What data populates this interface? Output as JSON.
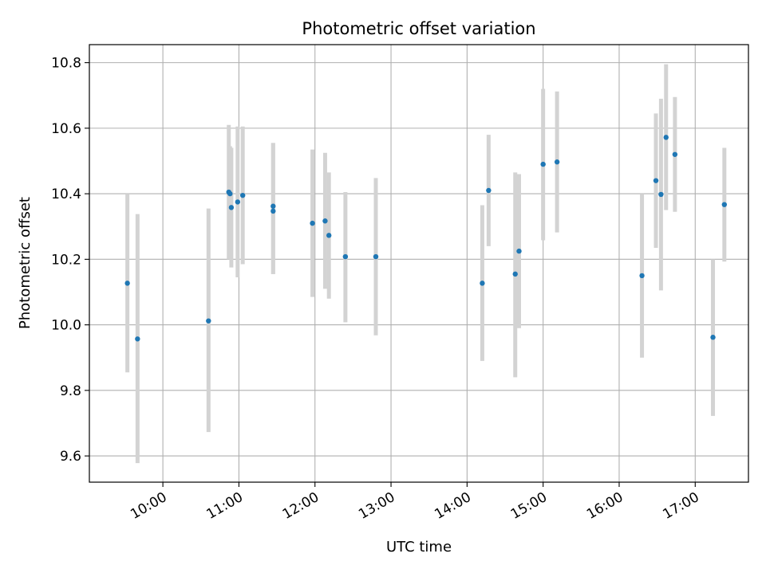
{
  "chart_data": {
    "type": "scatter",
    "title": "Photometric offset variation",
    "xlabel": "UTC time",
    "ylabel": "Photometric offset",
    "xlim": [
      "09:02",
      "17:42"
    ],
    "ylim": [
      9.52,
      10.855
    ],
    "x_ticks": [
      "10:00",
      "11:00",
      "12:00",
      "13:00",
      "14:00",
      "15:00",
      "16:00",
      "17:00"
    ],
    "y_ticks": [
      9.6,
      9.8,
      10.0,
      10.2,
      10.4,
      10.6,
      10.8
    ],
    "y_tick_labels": [
      "9.6",
      "9.8",
      "10.0",
      "10.2",
      "10.4",
      "10.6",
      "10.8"
    ],
    "grid": true,
    "point_color": "#1f77b4",
    "errorbar_color": "#d3d3d3",
    "points": [
      {
        "x": "09:32",
        "y": 10.127,
        "ylo": 9.855,
        "yhi": 10.4
      },
      {
        "x": "09:40",
        "y": 9.957,
        "ylo": 9.578,
        "yhi": 10.338
      },
      {
        "x": "10:36",
        "y": 10.012,
        "ylo": 9.673,
        "yhi": 10.355
      },
      {
        "x": "10:52",
        "y": 10.405,
        "ylo": 10.2,
        "yhi": 10.61
      },
      {
        "x": "10:53",
        "y": 10.4,
        "ylo": 10.255,
        "yhi": 10.545
      },
      {
        "x": "10:54",
        "y": 10.358,
        "ylo": 10.175,
        "yhi": 10.54
      },
      {
        "x": "10:59",
        "y": 10.375,
        "ylo": 10.145,
        "yhi": 10.605
      },
      {
        "x": "11:03",
        "y": 10.395,
        "ylo": 10.185,
        "yhi": 10.605
      },
      {
        "x": "11:27",
        "y": 10.362,
        "ylo": 10.155,
        "yhi": 10.555
      },
      {
        "x": "11:27",
        "y": 10.347,
        "ylo": 10.155,
        "yhi": 10.555
      },
      {
        "x": "11:58",
        "y": 10.31,
        "ylo": 10.085,
        "yhi": 10.535
      },
      {
        "x": "12:08",
        "y": 10.317,
        "ylo": 10.11,
        "yhi": 10.525
      },
      {
        "x": "12:11",
        "y": 10.273,
        "ylo": 10.08,
        "yhi": 10.465
      },
      {
        "x": "12:24",
        "y": 10.208,
        "ylo": 10.008,
        "yhi": 10.405
      },
      {
        "x": "12:48",
        "y": 10.208,
        "ylo": 9.968,
        "yhi": 10.448
      },
      {
        "x": "14:12",
        "y": 10.127,
        "ylo": 9.89,
        "yhi": 10.365
      },
      {
        "x": "14:17",
        "y": 10.41,
        "ylo": 10.24,
        "yhi": 10.58
      },
      {
        "x": "14:38",
        "y": 10.155,
        "ylo": 9.84,
        "yhi": 10.465
      },
      {
        "x": "14:41",
        "y": 10.225,
        "ylo": 9.99,
        "yhi": 10.46
      },
      {
        "x": "15:00",
        "y": 10.49,
        "ylo": 10.258,
        "yhi": 10.72
      },
      {
        "x": "15:11",
        "y": 10.497,
        "ylo": 10.282,
        "yhi": 10.712
      },
      {
        "x": "16:18",
        "y": 10.15,
        "ylo": 9.9,
        "yhi": 10.4
      },
      {
        "x": "16:29",
        "y": 10.44,
        "ylo": 10.235,
        "yhi": 10.645
      },
      {
        "x": "16:33",
        "y": 10.398,
        "ylo": 10.105,
        "yhi": 10.69
      },
      {
        "x": "16:37",
        "y": 10.572,
        "ylo": 10.35,
        "yhi": 10.795
      },
      {
        "x": "16:44",
        "y": 10.52,
        "ylo": 10.345,
        "yhi": 10.695
      },
      {
        "x": "17:14",
        "y": 9.962,
        "ylo": 9.722,
        "yhi": 10.2
      },
      {
        "x": "17:23",
        "y": 10.367,
        "ylo": 10.193,
        "yhi": 10.54
      }
    ]
  }
}
